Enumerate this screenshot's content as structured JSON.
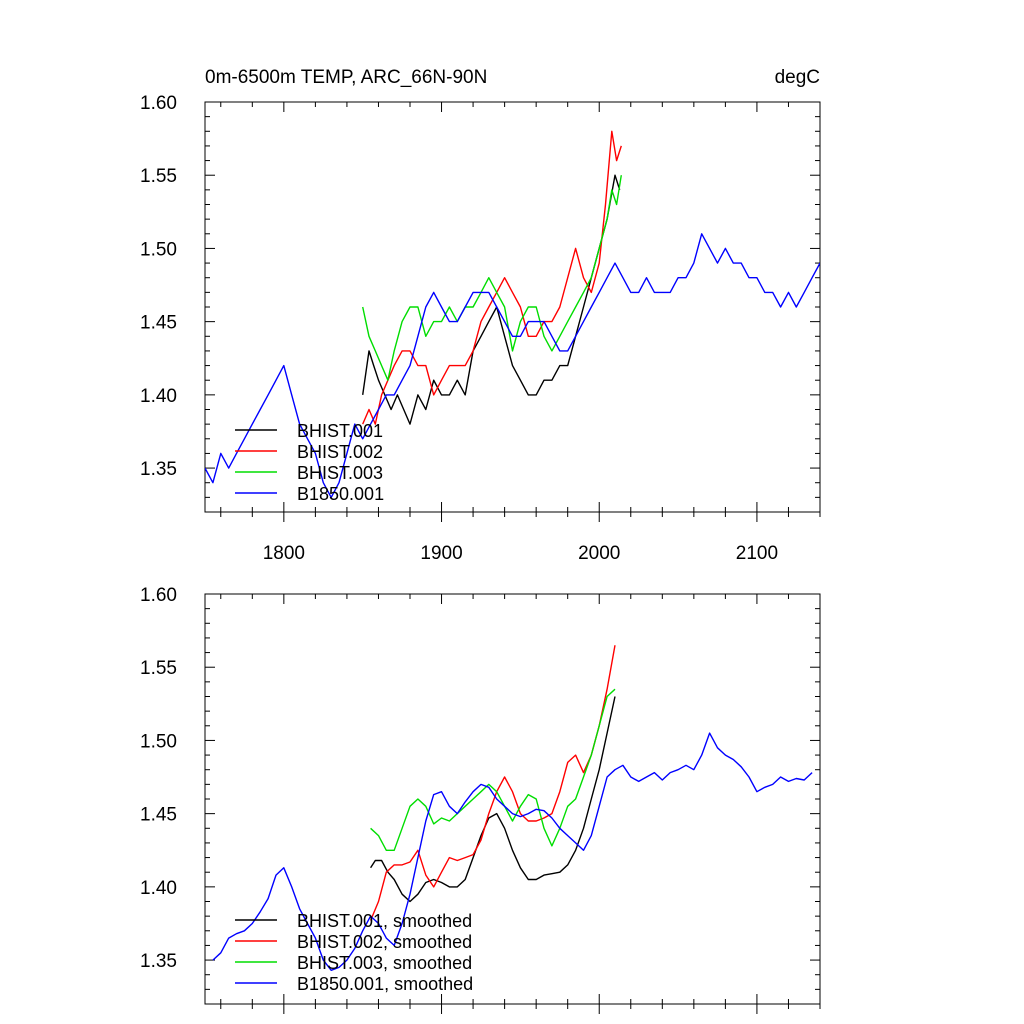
{
  "header": {
    "title": "0m-6500m TEMP, ARC_66N-90N",
    "units": "degC"
  },
  "colors": {
    "BHIST.001": "#000000",
    "BHIST.002": "#ff0000",
    "BHIST.003": "#00dd00",
    "B1850.001": "#0000ff"
  },
  "chart_data": [
    {
      "type": "line",
      "title": "0m-6500m TEMP, ARC_66N-90N",
      "units": "degC",
      "xlim": [
        1750,
        2140
      ],
      "ylim": [
        1.32,
        1.6
      ],
      "xticks": [
        1800,
        1900,
        2000,
        2100
      ],
      "xtick_labels": [
        "1800",
        "1900",
        "2000",
        "2100"
      ],
      "yticks": [
        1.35,
        1.4,
        1.45,
        1.5,
        1.55,
        1.6
      ],
      "ytick_labels": [
        "1.35",
        "1.40",
        "1.45",
        "1.50",
        "1.55",
        "1.60"
      ],
      "legend_position": "bottom-left",
      "series": [
        {
          "name": "BHIST.001",
          "x": [
            1850,
            1854,
            1857,
            1860,
            1864,
            1868,
            1872,
            1876,
            1880,
            1885,
            1890,
            1895,
            1900,
            1905,
            1910,
            1915,
            1920,
            1925,
            1930,
            1935,
            1940,
            1945,
            1950,
            1955,
            1960,
            1965,
            1970,
            1975,
            1980,
            1985,
            1990,
            1995,
            2000,
            2005,
            2010,
            2013
          ],
          "y": [
            1.4,
            1.43,
            1.42,
            1.41,
            1.4,
            1.39,
            1.4,
            1.39,
            1.38,
            1.4,
            1.39,
            1.41,
            1.4,
            1.4,
            1.41,
            1.4,
            1.43,
            1.44,
            1.45,
            1.46,
            1.44,
            1.42,
            1.41,
            1.4,
            1.4,
            1.41,
            1.41,
            1.42,
            1.42,
            1.44,
            1.46,
            1.48,
            1.5,
            1.52,
            1.55,
            1.54
          ]
        },
        {
          "name": "BHIST.002",
          "x": [
            1850,
            1854,
            1858,
            1862,
            1866,
            1870,
            1875,
            1880,
            1885,
            1890,
            1895,
            1900,
            1905,
            1910,
            1915,
            1920,
            1925,
            1930,
            1935,
            1940,
            1945,
            1950,
            1955,
            1960,
            1965,
            1970,
            1975,
            1980,
            1985,
            1990,
            1995,
            2000,
            2004,
            2008,
            2011,
            2014
          ],
          "y": [
            1.38,
            1.39,
            1.38,
            1.4,
            1.41,
            1.42,
            1.43,
            1.43,
            1.42,
            1.42,
            1.4,
            1.41,
            1.42,
            1.42,
            1.42,
            1.43,
            1.45,
            1.46,
            1.47,
            1.48,
            1.47,
            1.46,
            1.44,
            1.44,
            1.45,
            1.45,
            1.46,
            1.48,
            1.5,
            1.48,
            1.47,
            1.49,
            1.53,
            1.58,
            1.56,
            1.57
          ]
        },
        {
          "name": "BHIST.003",
          "x": [
            1850,
            1854,
            1858,
            1862,
            1866,
            1870,
            1875,
            1880,
            1885,
            1890,
            1895,
            1900,
            1905,
            1910,
            1915,
            1920,
            1925,
            1930,
            1935,
            1940,
            1945,
            1950,
            1955,
            1960,
            1965,
            1970,
            1975,
            1980,
            1985,
            1990,
            1995,
            2000,
            2005,
            2008,
            2011,
            2014
          ],
          "y": [
            1.46,
            1.44,
            1.43,
            1.42,
            1.41,
            1.43,
            1.45,
            1.46,
            1.46,
            1.44,
            1.45,
            1.45,
            1.46,
            1.45,
            1.46,
            1.46,
            1.47,
            1.48,
            1.47,
            1.46,
            1.43,
            1.45,
            1.46,
            1.46,
            1.44,
            1.43,
            1.44,
            1.45,
            1.46,
            1.47,
            1.48,
            1.5,
            1.52,
            1.54,
            1.53,
            1.55
          ]
        },
        {
          "name": "B1850.001",
          "x": [
            1750,
            1755,
            1760,
            1765,
            1770,
            1775,
            1780,
            1785,
            1790,
            1795,
            1800,
            1805,
            1810,
            1815,
            1820,
            1825,
            1830,
            1835,
            1840,
            1845,
            1850,
            1855,
            1860,
            1865,
            1870,
            1875,
            1880,
            1885,
            1890,
            1895,
            1900,
            1905,
            1910,
            1915,
            1920,
            1925,
            1930,
            1935,
            1940,
            1945,
            1950,
            1955,
            1960,
            1965,
            1970,
            1975,
            1980,
            1985,
            1990,
            1995,
            2000,
            2005,
            2010,
            2015,
            2020,
            2025,
            2030,
            2035,
            2040,
            2045,
            2050,
            2055,
            2060,
            2065,
            2070,
            2075,
            2080,
            2085,
            2090,
            2095,
            2100,
            2105,
            2110,
            2115,
            2120,
            2125,
            2130,
            2135,
            2140
          ],
          "y": [
            1.35,
            1.34,
            1.36,
            1.35,
            1.36,
            1.37,
            1.38,
            1.39,
            1.4,
            1.41,
            1.42,
            1.4,
            1.38,
            1.37,
            1.36,
            1.34,
            1.33,
            1.34,
            1.36,
            1.38,
            1.37,
            1.38,
            1.39,
            1.4,
            1.4,
            1.41,
            1.42,
            1.44,
            1.46,
            1.47,
            1.46,
            1.45,
            1.45,
            1.46,
            1.47,
            1.47,
            1.47,
            1.46,
            1.45,
            1.44,
            1.44,
            1.45,
            1.45,
            1.45,
            1.44,
            1.43,
            1.43,
            1.44,
            1.45,
            1.46,
            1.47,
            1.48,
            1.49,
            1.48,
            1.47,
            1.47,
            1.48,
            1.47,
            1.47,
            1.47,
            1.48,
            1.48,
            1.49,
            1.51,
            1.5,
            1.49,
            1.5,
            1.49,
            1.49,
            1.48,
            1.48,
            1.47,
            1.47,
            1.46,
            1.47,
            1.46,
            1.47,
            1.48,
            1.49
          ]
        }
      ]
    },
    {
      "type": "line",
      "xlim": [
        1750,
        2140
      ],
      "ylim": [
        1.32,
        1.6
      ],
      "xticks": [
        1800,
        1900,
        2000,
        2100
      ],
      "yticks": [
        1.35,
        1.4,
        1.45,
        1.5,
        1.55,
        1.6
      ],
      "ytick_labels": [
        "1.35",
        "1.40",
        "1.45",
        "1.50",
        "1.55",
        "1.60"
      ],
      "legend_position": "bottom-left",
      "series": [
        {
          "name": "BHIST.001, smoothed",
          "x": [
            1855,
            1858,
            1862,
            1866,
            1870,
            1875,
            1880,
            1885,
            1890,
            1895,
            1900,
            1905,
            1910,
            1915,
            1920,
            1925,
            1930,
            1935,
            1940,
            1945,
            1950,
            1955,
            1960,
            1965,
            1970,
            1975,
            1980,
            1985,
            1990,
            1995,
            2000,
            2005,
            2010
          ],
          "y": [
            1.413,
            1.418,
            1.418,
            1.41,
            1.405,
            1.395,
            1.39,
            1.395,
            1.403,
            1.405,
            1.403,
            1.4,
            1.4,
            1.405,
            1.42,
            1.435,
            1.447,
            1.45,
            1.44,
            1.425,
            1.413,
            1.405,
            1.405,
            1.408,
            1.409,
            1.41,
            1.415,
            1.425,
            1.44,
            1.46,
            1.48,
            1.505,
            1.53
          ]
        },
        {
          "name": "BHIST.002, smoothed",
          "x": [
            1855,
            1860,
            1865,
            1870,
            1875,
            1880,
            1885,
            1890,
            1895,
            1900,
            1905,
            1910,
            1915,
            1920,
            1925,
            1930,
            1935,
            1940,
            1945,
            1950,
            1955,
            1960,
            1965,
            1970,
            1975,
            1980,
            1985,
            1990,
            1995,
            2000,
            2005,
            2010
          ],
          "y": [
            1.377,
            1.39,
            1.41,
            1.415,
            1.415,
            1.417,
            1.425,
            1.408,
            1.4,
            1.41,
            1.42,
            1.418,
            1.42,
            1.422,
            1.432,
            1.45,
            1.465,
            1.475,
            1.465,
            1.45,
            1.445,
            1.445,
            1.447,
            1.45,
            1.465,
            1.485,
            1.49,
            1.478,
            1.49,
            1.51,
            1.535,
            1.565
          ]
        },
        {
          "name": "BHIST.003, smoothed",
          "x": [
            1855,
            1860,
            1865,
            1870,
            1875,
            1880,
            1885,
            1890,
            1895,
            1900,
            1905,
            1910,
            1915,
            1920,
            1925,
            1930,
            1935,
            1940,
            1945,
            1950,
            1955,
            1960,
            1965,
            1970,
            1975,
            1980,
            1985,
            1990,
            1995,
            2000,
            2005,
            2010
          ],
          "y": [
            1.44,
            1.435,
            1.425,
            1.425,
            1.44,
            1.455,
            1.46,
            1.455,
            1.443,
            1.447,
            1.445,
            1.45,
            1.455,
            1.46,
            1.465,
            1.47,
            1.465,
            1.455,
            1.445,
            1.455,
            1.463,
            1.46,
            1.44,
            1.428,
            1.44,
            1.455,
            1.46,
            1.475,
            1.49,
            1.51,
            1.53,
            1.535
          ]
        },
        {
          "name": "B1850.001, smoothed",
          "x": [
            1755,
            1760,
            1765,
            1770,
            1775,
            1780,
            1785,
            1790,
            1795,
            1800,
            1805,
            1810,
            1815,
            1820,
            1825,
            1830,
            1835,
            1840,
            1845,
            1850,
            1855,
            1860,
            1865,
            1870,
            1875,
            1880,
            1885,
            1890,
            1895,
            1900,
            1905,
            1910,
            1915,
            1920,
            1925,
            1930,
            1935,
            1940,
            1945,
            1950,
            1955,
            1960,
            1965,
            1970,
            1975,
            1980,
            1985,
            1990,
            1995,
            2000,
            2005,
            2010,
            2015,
            2020,
            2025,
            2030,
            2035,
            2040,
            2045,
            2050,
            2055,
            2060,
            2065,
            2070,
            2075,
            2080,
            2085,
            2090,
            2095,
            2100,
            2105,
            2110,
            2115,
            2120,
            2125,
            2130,
            2135
          ],
          "y": [
            1.35,
            1.355,
            1.365,
            1.368,
            1.37,
            1.375,
            1.383,
            1.392,
            1.408,
            1.413,
            1.4,
            1.385,
            1.375,
            1.365,
            1.35,
            1.343,
            1.345,
            1.35,
            1.358,
            1.37,
            1.38,
            1.375,
            1.365,
            1.36,
            1.375,
            1.395,
            1.42,
            1.445,
            1.463,
            1.465,
            1.455,
            1.45,
            1.458,
            1.465,
            1.47,
            1.468,
            1.46,
            1.455,
            1.45,
            1.448,
            1.45,
            1.453,
            1.452,
            1.447,
            1.44,
            1.435,
            1.43,
            1.425,
            1.435,
            1.455,
            1.475,
            1.48,
            1.483,
            1.475,
            1.472,
            1.475,
            1.478,
            1.473,
            1.478,
            1.48,
            1.483,
            1.48,
            1.49,
            1.505,
            1.495,
            1.49,
            1.487,
            1.482,
            1.475,
            1.465,
            1.468,
            1.47,
            1.475,
            1.472,
            1.474,
            1.473,
            1.478
          ]
        }
      ]
    }
  ]
}
